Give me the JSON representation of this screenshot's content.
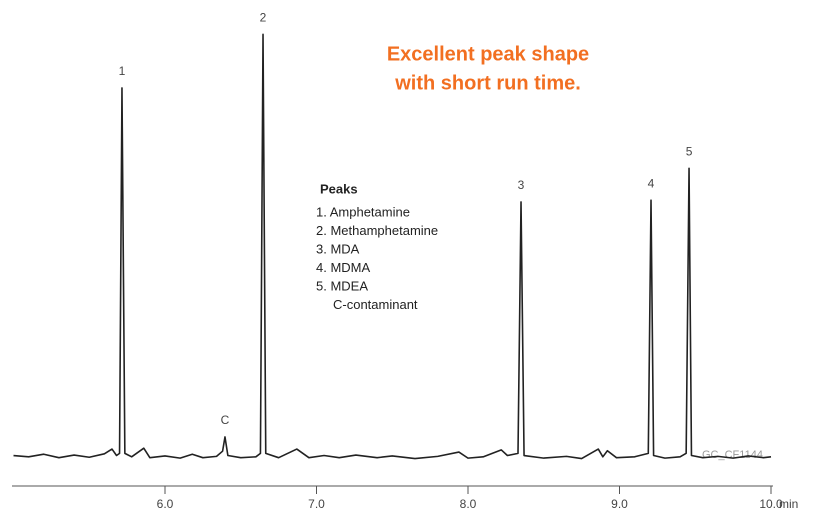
{
  "chart_data": {
    "type": "line",
    "headline": [
      "Excellent peak shape",
      "with short run time."
    ],
    "x_label": "min",
    "watermark": "GC_CF1144",
    "legend_title": "Peaks",
    "legend_items": [
      "1. Amphetamine",
      "2. Methamphetamine",
      "3. MDA",
      "4. MDMA",
      "5. MDEA",
      "C-contaminant"
    ],
    "x": [
      5.0,
      5.1,
      5.2,
      5.3,
      5.4,
      5.5,
      5.6,
      5.65,
      5.68,
      5.7,
      5.716,
      5.735,
      5.78,
      5.86,
      5.9,
      6.0,
      6.1,
      6.18,
      6.25,
      6.34,
      6.38,
      6.396,
      6.415,
      6.5,
      6.6,
      6.63,
      6.647,
      6.665,
      6.75,
      6.87,
      6.95,
      7.05,
      7.15,
      7.26,
      7.4,
      7.5,
      7.65,
      7.8,
      7.94,
      8.0,
      8.1,
      8.22,
      8.26,
      8.33,
      8.35,
      8.37,
      8.5,
      8.65,
      8.75,
      8.86,
      8.89,
      8.92,
      8.98,
      9.1,
      9.19,
      9.208,
      9.225,
      9.3,
      9.4,
      9.44,
      9.459,
      9.475,
      9.55,
      9.65,
      9.75,
      9.85,
      9.95,
      10.0
    ],
    "series": [
      {
        "color": "#222222",
        "values": [
          1.5,
          1.2,
          1.8,
          1.0,
          1.6,
          1.1,
          1.9,
          3.0,
          1.5,
          2.0,
          86.6,
          2.0,
          1.2,
          3.2,
          1.0,
          1.4,
          0.9,
          1.8,
          1.0,
          1.3,
          2.5,
          5.8,
          1.5,
          1.0,
          1.2,
          2.0,
          99,
          2.0,
          1.0,
          3.0,
          1.0,
          1.5,
          1.0,
          1.6,
          1.0,
          1.4,
          0.8,
          1.3,
          2.3,
          0.9,
          1.2,
          2.8,
          1.5,
          2.0,
          60.2,
          1.5,
          0.9,
          1.3,
          0.8,
          3.0,
          1.2,
          2.6,
          1.0,
          1.2,
          2.0,
          60.6,
          1.5,
          0.9,
          1.2,
          2.0,
          68,
          1.5,
          1.0,
          1.3,
          0.9,
          1.4,
          1.0,
          1.2
        ]
      }
    ],
    "peak_labels": [
      {
        "text": "1",
        "x": 5.716
      },
      {
        "text": "C",
        "x": 6.396
      },
      {
        "text": "2",
        "x": 6.647
      },
      {
        "text": "3",
        "x": 8.35
      },
      {
        "text": "4",
        "x": 9.208
      },
      {
        "text": "5",
        "x": 9.459
      }
    ],
    "xlim": [
      5.0,
      10.0
    ],
    "ylim": [
      0,
      100
    ],
    "xticks": [
      {
        "value": 6,
        "label": "6.0"
      },
      {
        "value": 7,
        "label": "7.0"
      },
      {
        "value": 8,
        "label": "8.0"
      },
      {
        "value": 9,
        "label": "9.0"
      },
      {
        "value": 10,
        "label": "10.0"
      }
    ]
  }
}
